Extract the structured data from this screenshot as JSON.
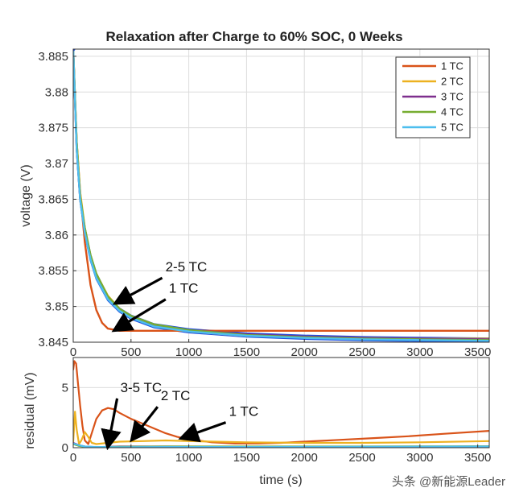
{
  "chart_data": [
    {
      "type": "line",
      "title": "Relaxation after Charge to 60% SOC, 0 Weeks",
      "xlabel": "",
      "ylabel": "voltage (V)",
      "xlim": [
        0,
        3600
      ],
      "ylim": [
        3.845,
        3.886
      ],
      "xticks": [
        0,
        500,
        1000,
        1500,
        2000,
        2500,
        3000,
        3500
      ],
      "yticks": [
        3.845,
        3.85,
        3.855,
        3.86,
        3.865,
        3.87,
        3.875,
        3.88,
        3.885
      ],
      "ytick_labels": [
        "3.845",
        "3.85",
        "3.855",
        "3.86",
        "3.865",
        "3.87",
        "3.875",
        "3.88",
        "3.885"
      ],
      "grid": true,
      "legend_position": "top-right",
      "fit_color": "#1f4fe0",
      "series": [
        {
          "name": "1 TC",
          "color": "#d95319",
          "x": [
            0,
            30,
            60,
            100,
            150,
            200,
            250,
            300,
            400,
            600,
            1000,
            2000,
            3600
          ],
          "y": [
            3.886,
            3.873,
            3.866,
            3.859,
            3.853,
            3.8495,
            3.8477,
            3.8469,
            3.8466,
            3.8466,
            3.8466,
            3.8466,
            3.8466
          ]
        },
        {
          "name": "2 TC",
          "color": "#edb120",
          "x": [
            0,
            30,
            60,
            100,
            150,
            200,
            300,
            400,
            500,
            700,
            1000,
            1500,
            2000,
            2500,
            3000,
            3600
          ],
          "y": [
            3.886,
            3.873,
            3.866,
            3.861,
            3.857,
            3.8545,
            3.8515,
            3.8497,
            3.8485,
            3.8473,
            3.8465,
            3.8459,
            3.8457,
            3.8456,
            3.8455,
            3.8455
          ]
        },
        {
          "name": "3 TC",
          "color": "#7e2f8e",
          "x": [
            0,
            30,
            60,
            100,
            150,
            200,
            300,
            400,
            500,
            700,
            1000,
            1500,
            2000,
            2500,
            3000,
            3600
          ],
          "y": [
            3.886,
            3.872,
            3.865,
            3.8605,
            3.8568,
            3.8542,
            3.8512,
            3.8496,
            3.8486,
            3.8474,
            3.8467,
            3.8461,
            3.8458,
            3.8456,
            3.8455,
            3.8454
          ]
        },
        {
          "name": "4 TC",
          "color": "#77ac30",
          "x": [
            0,
            30,
            60,
            100,
            150,
            200,
            300,
            400,
            500,
            700,
            1000,
            1500,
            2000,
            2500,
            3000,
            3600
          ],
          "y": [
            3.886,
            3.873,
            3.8655,
            3.861,
            3.8572,
            3.8546,
            3.8514,
            3.8497,
            3.8487,
            3.8475,
            3.8467,
            3.846,
            3.8457,
            3.8455,
            3.8454,
            3.8453
          ]
        },
        {
          "name": "5 TC",
          "color": "#4dbeee",
          "x": [
            0,
            30,
            60,
            100,
            150,
            200,
            300,
            400,
            500,
            700,
            1000,
            1500,
            2000,
            2500,
            3000,
            3600
          ],
          "y": [
            3.886,
            3.872,
            3.865,
            3.8603,
            3.8566,
            3.854,
            3.851,
            3.8494,
            3.8484,
            3.8472,
            3.8465,
            3.8459,
            3.8456,
            3.8454,
            3.8453,
            3.8452
          ]
        }
      ],
      "annotations": [
        {
          "text": "2-5 TC",
          "x_from": 770,
          "y_from": 3.854,
          "x_to": 370,
          "y_to": 3.8505
        },
        {
          "text": "1 TC",
          "x_from": 800,
          "y_from": 3.851,
          "x_to": 360,
          "y_to": 3.8467
        }
      ]
    },
    {
      "type": "line",
      "title": "",
      "xlabel": "time (s)",
      "ylabel": "residual (mV)",
      "xlim": [
        0,
        3600
      ],
      "ylim": [
        0,
        7.5
      ],
      "xticks": [
        0,
        500,
        1000,
        1500,
        2000,
        2500,
        3000,
        3500
      ],
      "yticks": [
        0,
        5
      ],
      "ytick_labels": [
        "0",
        "5"
      ],
      "grid": true,
      "series": [
        {
          "name": "1 TC",
          "color": "#d95319",
          "x": [
            0,
            10,
            25,
            40,
            60,
            80,
            100,
            130,
            160,
            200,
            250,
            300,
            350,
            400,
            500,
            600,
            700,
            800,
            900,
            1000,
            1200,
            1400,
            1600,
            1800,
            2000,
            2300,
            2600,
            2900,
            3200,
            3600
          ],
          "y": [
            6.5,
            7.2,
            7.0,
            5.5,
            3.5,
            1.8,
            0.6,
            0.3,
            1.2,
            2.4,
            3.1,
            3.3,
            3.2,
            2.9,
            2.4,
            2.0,
            1.6,
            1.2,
            0.9,
            0.7,
            0.45,
            0.35,
            0.35,
            0.4,
            0.5,
            0.65,
            0.8,
            0.95,
            1.15,
            1.4
          ]
        },
        {
          "name": "2 TC",
          "color": "#edb120",
          "x": [
            0,
            15,
            30,
            50,
            70,
            100,
            130,
            160,
            200,
            300,
            400,
            600,
            800,
            1000,
            1500,
            2000,
            2500,
            3000,
            3600
          ],
          "y": [
            0.5,
            3.0,
            1.5,
            0.3,
            0.6,
            1.3,
            0.9,
            0.4,
            0.3,
            0.4,
            0.5,
            0.55,
            0.6,
            0.55,
            0.45,
            0.4,
            0.4,
            0.45,
            0.55
          ]
        },
        {
          "name": "3 TC",
          "color": "#7e2f8e",
          "x": [
            0,
            50,
            100,
            200,
            400,
            800,
            1500,
            2500,
            3600
          ],
          "y": [
            0.4,
            0.2,
            0.1,
            0.05,
            0.1,
            0.1,
            0.08,
            0.08,
            0.1
          ]
        },
        {
          "name": "4 TC",
          "color": "#77ac30",
          "x": [
            0,
            50,
            100,
            200,
            400,
            800,
            1500,
            2500,
            3600
          ],
          "y": [
            0.3,
            0.15,
            0.08,
            0.05,
            0.08,
            0.1,
            0.1,
            0.1,
            0.12
          ]
        },
        {
          "name": "5 TC",
          "color": "#4dbeee",
          "x": [
            0,
            50,
            100,
            200,
            400,
            800,
            1500,
            2500,
            3600
          ],
          "y": [
            0.35,
            0.2,
            0.1,
            0.06,
            0.05,
            0.06,
            0.06,
            0.08,
            0.1
          ]
        }
      ],
      "annotations": [
        {
          "text": "3-5 TC",
          "x_from": 380,
          "y_from": 4.1,
          "x_to": 300,
          "y_to": 0.1
        },
        {
          "text": "2 TC",
          "x_from": 730,
          "y_from": 3.4,
          "x_to": 510,
          "y_to": 0.7
        },
        {
          "text": "1 TC",
          "x_from": 1320,
          "y_from": 2.1,
          "x_to": 940,
          "y_to": 0.8
        }
      ]
    }
  ],
  "watermark": "头条 @新能源Leader"
}
